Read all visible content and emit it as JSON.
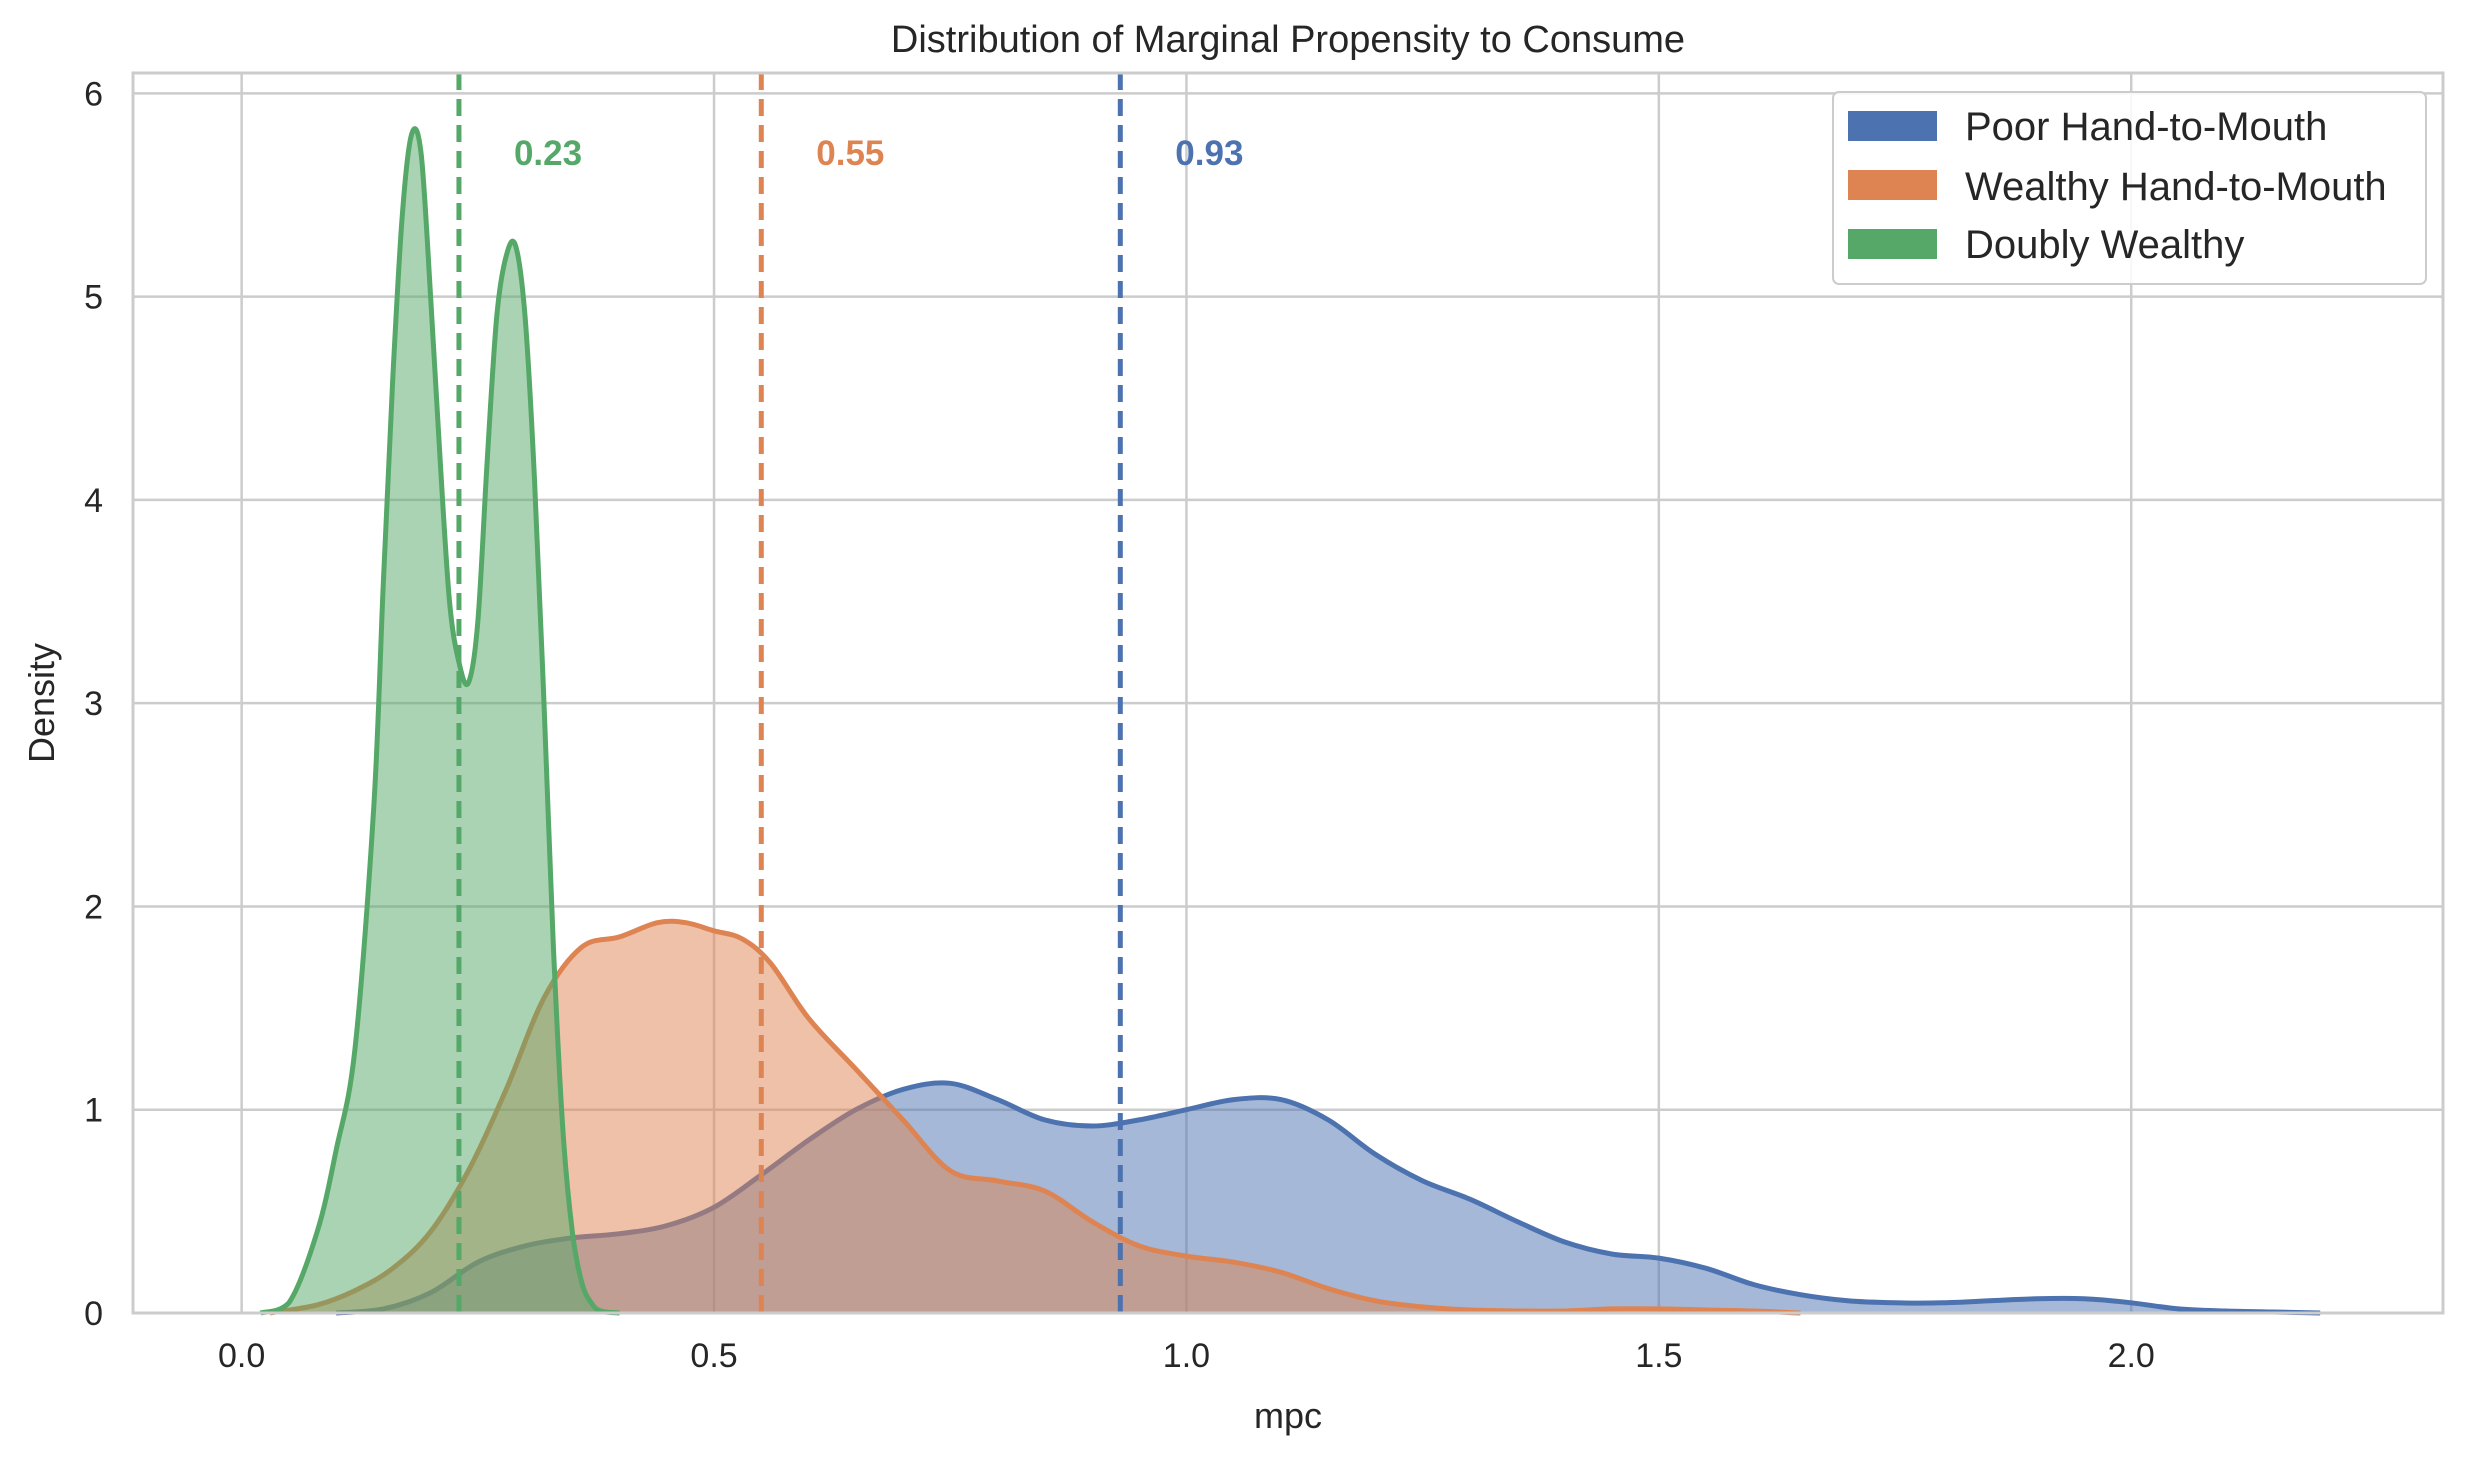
{
  "chart_data": {
    "type": "area",
    "title": "Distribution of Marginal Propensity to Consume",
    "xlabel": "mpc",
    "ylabel": "Density",
    "xlim": [
      -0.115,
      2.33
    ],
    "ylim": [
      0,
      6.1
    ],
    "xticks": [
      0.0,
      0.5,
      1.0,
      1.5,
      2.0
    ],
    "xtick_labels": [
      "0.0",
      "0.5",
      "1.0",
      "1.5",
      "2.0"
    ],
    "yticks": [
      0,
      1,
      2,
      3,
      4,
      5,
      6
    ],
    "ytick_labels": [
      "0",
      "1",
      "2",
      "3",
      "4",
      "5",
      "6"
    ],
    "grid": true,
    "legend_position": "top-right",
    "series": [
      {
        "name": "Poor Hand-to-Mouth",
        "color": "#4c72b0",
        "mean": 0.93,
        "mean_label": "0.93",
        "x": [
          0.1,
          0.15,
          0.2,
          0.25,
          0.3,
          0.35,
          0.4,
          0.45,
          0.5,
          0.55,
          0.6,
          0.65,
          0.7,
          0.75,
          0.8,
          0.85,
          0.9,
          0.95,
          1.0,
          1.05,
          1.1,
          1.15,
          1.2,
          1.25,
          1.3,
          1.35,
          1.4,
          1.45,
          1.5,
          1.55,
          1.6,
          1.65,
          1.7,
          1.75,
          1.8,
          1.85,
          1.9,
          1.95,
          2.0,
          2.05,
          2.1,
          2.15,
          2.2
        ],
        "y": [
          0.0,
          0.02,
          0.1,
          0.25,
          0.33,
          0.37,
          0.39,
          0.43,
          0.52,
          0.68,
          0.85,
          1.0,
          1.1,
          1.13,
          1.05,
          0.95,
          0.92,
          0.95,
          1.0,
          1.05,
          1.05,
          0.95,
          0.78,
          0.65,
          0.56,
          0.45,
          0.35,
          0.29,
          0.27,
          0.22,
          0.14,
          0.09,
          0.06,
          0.05,
          0.05,
          0.06,
          0.07,
          0.07,
          0.05,
          0.02,
          0.01,
          0.005,
          0.0
        ]
      },
      {
        "name": "Wealthy Hand-to-Mouth",
        "color": "#dd8452",
        "mean": 0.55,
        "mean_label": "0.55",
        "x": [
          0.03,
          0.08,
          0.12,
          0.16,
          0.2,
          0.24,
          0.28,
          0.32,
          0.36,
          0.4,
          0.44,
          0.47,
          0.5,
          0.53,
          0.56,
          0.6,
          0.65,
          0.7,
          0.75,
          0.8,
          0.85,
          0.9,
          0.95,
          1.0,
          1.05,
          1.1,
          1.15,
          1.2,
          1.25,
          1.3,
          1.35,
          1.4,
          1.45,
          1.5,
          1.55,
          1.6,
          1.65
        ],
        "y": [
          0.0,
          0.04,
          0.11,
          0.22,
          0.4,
          0.7,
          1.1,
          1.55,
          1.8,
          1.85,
          1.92,
          1.92,
          1.88,
          1.84,
          1.72,
          1.45,
          1.2,
          0.95,
          0.7,
          0.65,
          0.6,
          0.45,
          0.33,
          0.28,
          0.25,
          0.2,
          0.12,
          0.06,
          0.03,
          0.015,
          0.01,
          0.01,
          0.02,
          0.02,
          0.015,
          0.01,
          0.0
        ]
      },
      {
        "name": "Doubly Wealthy",
        "color": "#55a868",
        "mean": 0.23,
        "mean_label": "0.23",
        "x": [
          0.02,
          0.05,
          0.08,
          0.1,
          0.12,
          0.14,
          0.15,
          0.16,
          0.17,
          0.18,
          0.19,
          0.2,
          0.21,
          0.22,
          0.23,
          0.24,
          0.25,
          0.26,
          0.27,
          0.28,
          0.29,
          0.3,
          0.31,
          0.32,
          0.33,
          0.34,
          0.35,
          0.36,
          0.37,
          0.38,
          0.4
        ],
        "y": [
          0.0,
          0.05,
          0.4,
          0.8,
          1.3,
          2.5,
          3.6,
          4.6,
          5.4,
          5.8,
          5.7,
          5.0,
          4.2,
          3.5,
          3.2,
          3.1,
          3.4,
          4.2,
          4.9,
          5.2,
          5.25,
          4.9,
          4.1,
          3.0,
          1.8,
          0.9,
          0.4,
          0.15,
          0.05,
          0.01,
          0.0
        ]
      }
    ]
  }
}
